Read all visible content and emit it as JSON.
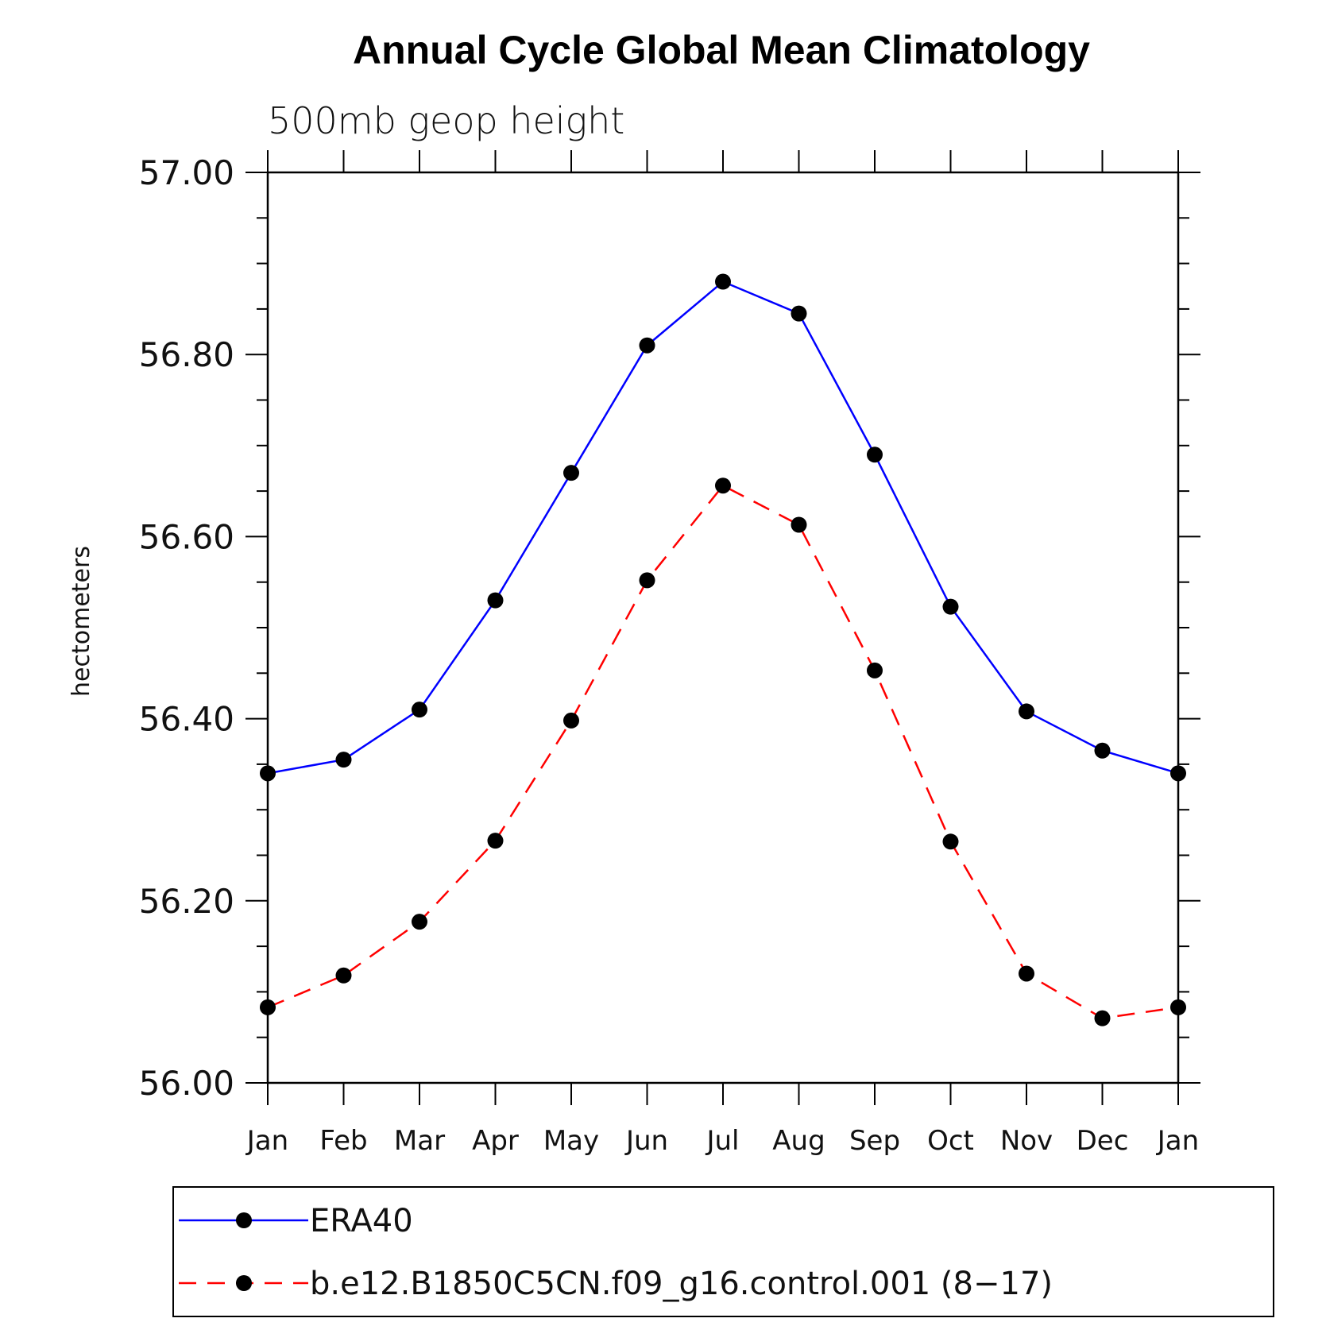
{
  "chart_data": {
    "type": "line",
    "title": "Annual Cycle Global Mean Climatology",
    "subtitle": "500mb geop height",
    "ylabel": "hectometers",
    "xlabel": "",
    "categories": [
      "Jan",
      "Feb",
      "Mar",
      "Apr",
      "May",
      "Jun",
      "Jul",
      "Aug",
      "Sep",
      "Oct",
      "Nov",
      "Dec",
      "Jan"
    ],
    "ylim": [
      56.0,
      57.0
    ],
    "yticks": [
      "56.00",
      "56.20",
      "56.40",
      "56.60",
      "56.80",
      "57.00"
    ],
    "grid": false,
    "legend_position": "bottom",
    "series": [
      {
        "name": "ERA40",
        "color": "#0000ff",
        "line_style": "solid",
        "marker": "filled-circle",
        "values": [
          56.34,
          56.355,
          56.41,
          56.53,
          56.67,
          56.81,
          56.88,
          56.845,
          56.69,
          56.523,
          56.408,
          56.365,
          56.34
        ]
      },
      {
        "name": "b.e12.B1850C5CN.f09_g16.control.001 (8−17)",
        "color": "#ff0000",
        "line_style": "dashed",
        "marker": "filled-circle",
        "values": [
          56.083,
          56.118,
          56.177,
          56.266,
          56.398,
          56.552,
          56.656,
          56.613,
          56.453,
          56.265,
          56.12,
          56.071,
          56.083
        ]
      }
    ]
  }
}
